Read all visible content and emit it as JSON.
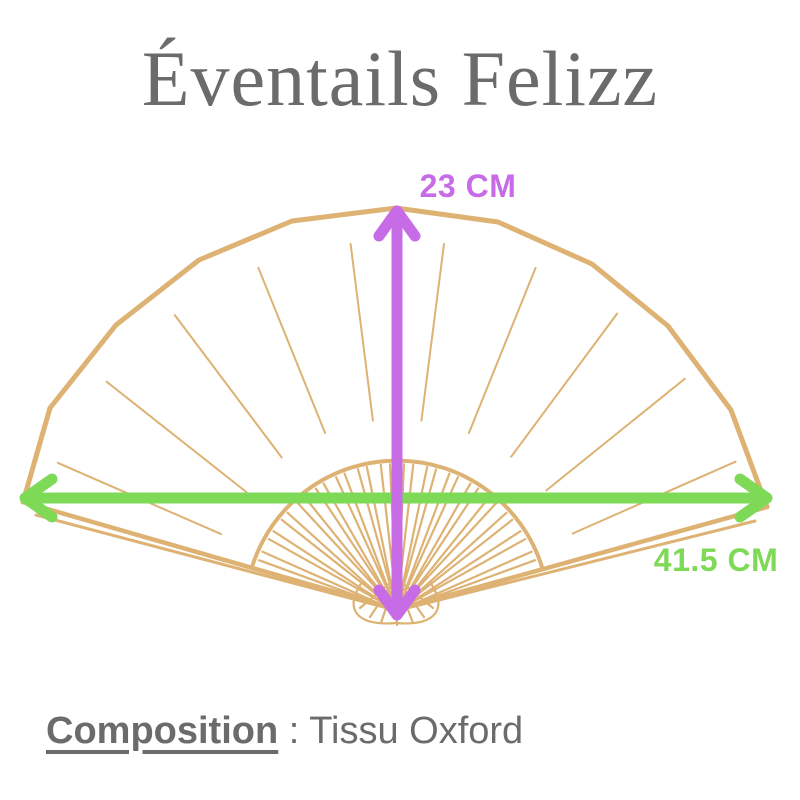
{
  "header": {
    "title": "Éventails Felizz"
  },
  "measurements": {
    "height": "23 CM",
    "width": "41.5 CM"
  },
  "footer": {
    "composition_label": "Composition",
    "separator": " : ",
    "composition_value": "Tissu Oxford"
  },
  "colors": {
    "text_gray": "#6b6b6b",
    "fan_outline_tan": "#ddb273",
    "height_arrow_purple": "#c76be6",
    "width_arrow_green": "#7ed957"
  }
}
